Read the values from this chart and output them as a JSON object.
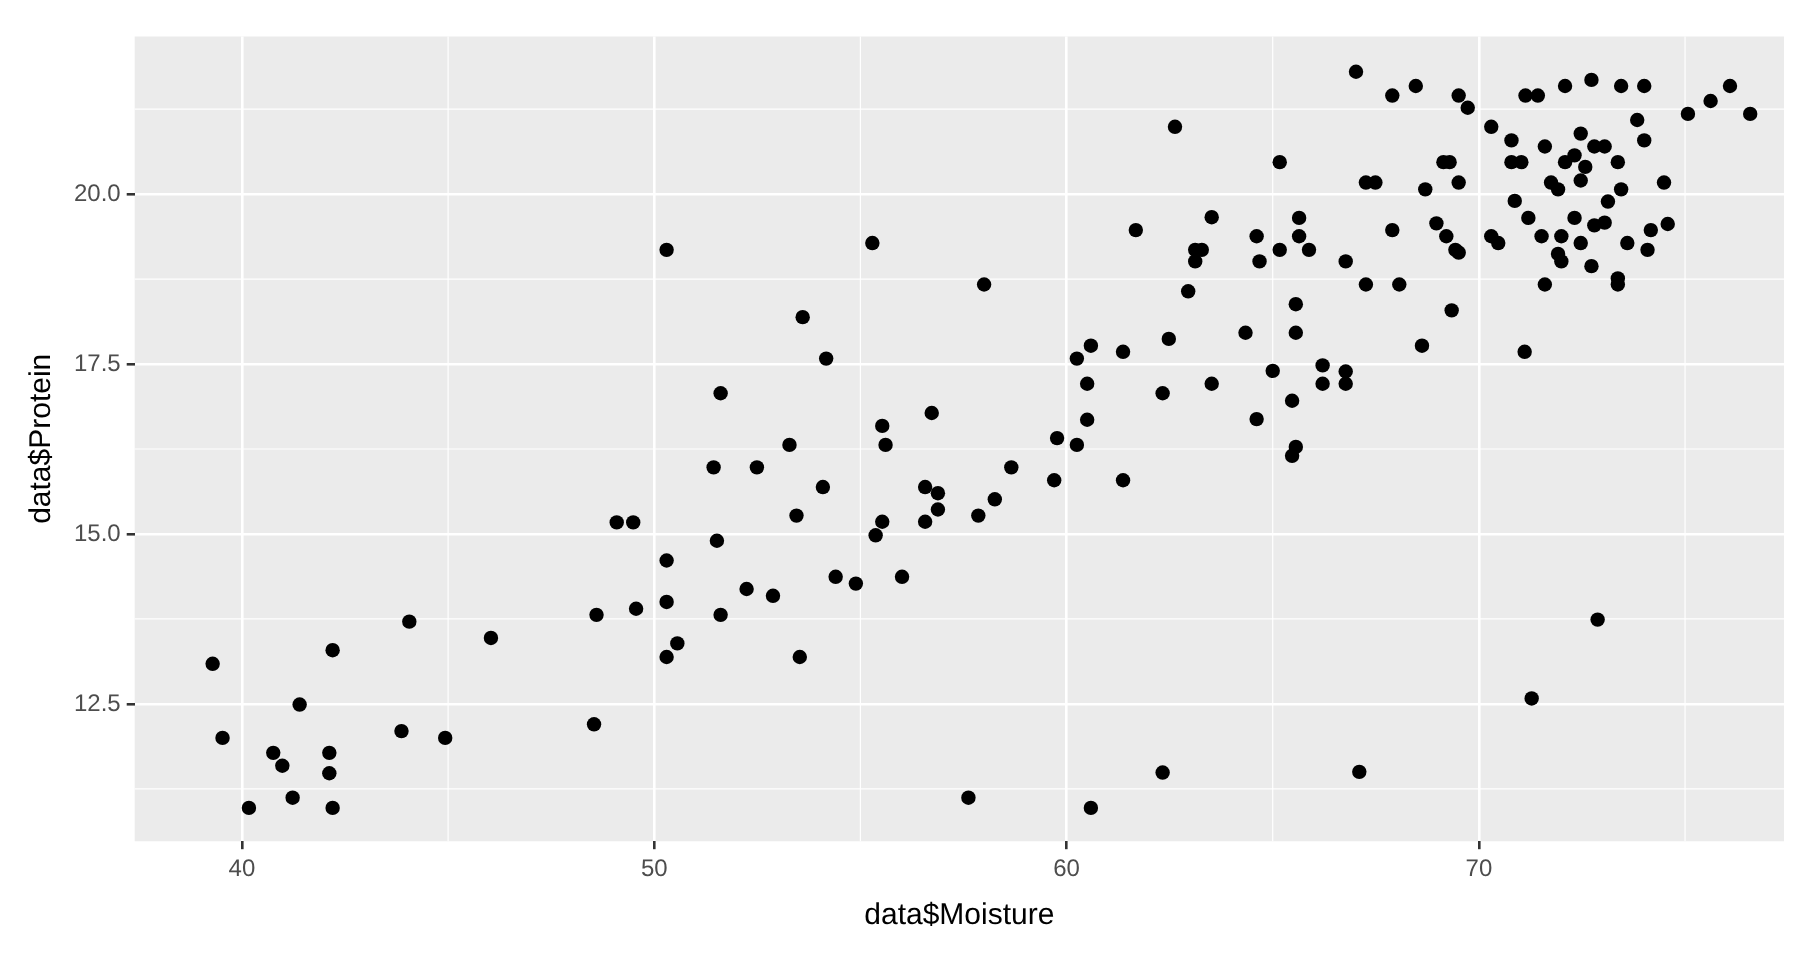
{
  "chart_data": {
    "type": "scatter",
    "xlabel": "data$Moisture",
    "ylabel": "data$Protein",
    "xlim": [
      37.4,
      77.4
    ],
    "ylim": [
      10.48,
      22.32
    ],
    "xticks": [
      40,
      50,
      60,
      70
    ],
    "yticks": [
      {
        "value": 12.5,
        "label": "12.5"
      },
      {
        "value": 15,
        "label": "15.0"
      },
      {
        "value": 17.5,
        "label": "17.5"
      },
      {
        "value": 20,
        "label": "20.0"
      }
    ],
    "grid": true,
    "legend": false,
    "marker": "circle",
    "series": [
      {
        "color": "#000000",
        "x": [
          39.29,
          39.53,
          40.17,
          40.76,
          40.98,
          41.23,
          41.4,
          42.2,
          42.12,
          42.12,
          42.2,
          43.87,
          44.06,
          44.93,
          46.04,
          48.54,
          48.6,
          49.09,
          49.49,
          49.56,
          50.3,
          50.3,
          50.3,
          50.3,
          50.56,
          51.44,
          51.61,
          51.52,
          51.61,
          52.24,
          52.49,
          52.88,
          53.28,
          53.45,
          53.53,
          53.6,
          54.09,
          54.17,
          54.4,
          54.89,
          55.29,
          55.37,
          55.53,
          55.53,
          55.61,
          56.01,
          56.57,
          56.57,
          56.73,
          56.88,
          56.88,
          57.62,
          57.86,
          58.0,
          58.26,
          58.66,
          59.7,
          59.77,
          60.25,
          60.25,
          60.5,
          60.5,
          60.59,
          60.59,
          61.37,
          61.37,
          61.68,
          62.33,
          62.33,
          62.48,
          62.63,
          62.95,
          63.12,
          63.28,
          63.12,
          63.52,
          63.52,
          64.34,
          64.61,
          64.68,
          64.61,
          65.0,
          65.17,
          65.17,
          65.47,
          65.47,
          65.56,
          65.56,
          65.56,
          65.64,
          65.64,
          65.88,
          66.21,
          66.21,
          66.77,
          66.77,
          66.77,
          67.02,
          67.1,
          67.26,
          67.26,
          67.49,
          67.9,
          67.9,
          68.07,
          68.47,
          68.62,
          68.7,
          68.97,
          69.14,
          69.29,
          69.21,
          69.34,
          69.43,
          69.51,
          69.51,
          69.73,
          69.51,
          70.3,
          70.3,
          70.47,
          70.79,
          70.79,
          71.03,
          70.87,
          71.11,
          71.2,
          71.28,
          71.13,
          71.43,
          71.52,
          71.6,
          71.6,
          71.75,
          71.92,
          71.92,
          72.0,
          72.0,
          72.09,
          72.09,
          72.32,
          72.47,
          72.47,
          72.32,
          72.47,
          72.58,
          72.73,
          72.73,
          72.8,
          72.88,
          72.8,
          73.05,
          73.05,
          73.13,
          73.37,
          73.37,
          73.37,
          73.45,
          73.45,
          73.6,
          73.84,
          74.01,
          74.01,
          74.09,
          74.17,
          74.49,
          74.58,
          75.07,
          75.62,
          76.09,
          76.58
        ],
        "values": [
          13.09,
          12.0,
          10.97,
          11.78,
          11.59,
          11.12,
          12.49,
          13.29,
          11.78,
          11.48,
          10.97,
          12.1,
          13.71,
          12.0,
          13.47,
          12.2,
          13.81,
          15.17,
          15.17,
          13.9,
          19.18,
          14.61,
          14.0,
          13.19,
          13.39,
          15.98,
          17.07,
          14.9,
          13.81,
          14.19,
          15.98,
          14.09,
          16.31,
          15.27,
          13.19,
          18.19,
          15.69,
          17.58,
          14.37,
          14.27,
          19.28,
          14.98,
          15.18,
          16.59,
          16.31,
          14.37,
          15.69,
          15.18,
          16.78,
          15.6,
          15.36,
          11.12,
          15.27,
          18.67,
          15.51,
          15.98,
          15.79,
          16.41,
          17.58,
          16.31,
          16.68,
          17.21,
          17.77,
          10.97,
          17.68,
          15.79,
          19.47,
          17.07,
          11.49,
          17.87,
          20.99,
          18.57,
          19.18,
          19.18,
          19.01,
          19.66,
          17.21,
          17.96,
          19.38,
          19.01,
          16.69,
          17.4,
          20.47,
          19.18,
          16.96,
          16.15,
          16.28,
          18.38,
          17.96,
          19.65,
          19.38,
          19.18,
          17.48,
          17.21,
          17.39,
          17.21,
          19.01,
          21.8,
          11.5,
          18.67,
          20.17,
          20.17,
          21.45,
          19.47,
          18.67,
          21.59,
          17.77,
          20.07,
          19.57,
          20.47,
          20.47,
          19.38,
          18.29,
          19.18,
          20.17,
          21.45,
          21.27,
          19.14,
          20.99,
          19.38,
          19.28,
          20.79,
          20.47,
          20.47,
          19.9,
          17.68,
          19.65,
          12.58,
          21.45,
          21.45,
          19.38,
          18.67,
          20.7,
          20.17,
          20.07,
          19.12,
          19.01,
          19.38,
          21.59,
          20.47,
          20.57,
          20.89,
          20.2,
          19.65,
          19.28,
          20.4,
          21.68,
          18.94,
          20.7,
          13.74,
          19.54,
          20.7,
          19.58,
          19.89,
          20.47,
          18.76,
          18.67,
          21.59,
          20.07,
          19.28,
          21.09,
          21.59,
          20.79,
          19.18,
          19.47,
          20.17,
          19.56,
          21.18,
          21.37,
          21.59,
          21.18
        ]
      }
    ]
  }
}
